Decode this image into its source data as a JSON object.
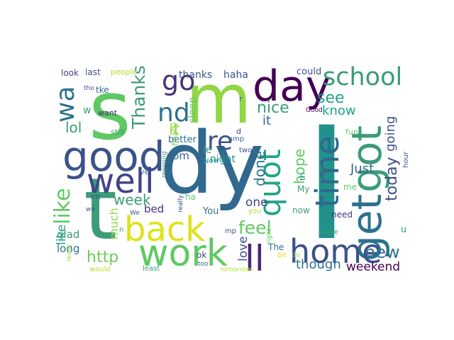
{
  "words": [
    {
      "t": "I",
      "c": "#21918c"
    },
    {
      "t": "dy",
      "c": "#31688e"
    },
    {
      "t": "s",
      "c": "#5ec962"
    },
    {
      "t": "t",
      "c": "#3b9c78"
    },
    {
      "t": "m",
      "c": "#8fd744"
    },
    {
      "t": "day",
      "c": "#440154"
    },
    {
      "t": "good",
      "c": "#3b528b"
    },
    {
      "t": "work",
      "c": "#5ec962"
    },
    {
      "t": "got",
      "c": "#3b9c78"
    },
    {
      "t": "get",
      "c": "#2c728e"
    },
    {
      "t": "back",
      "c": "#dde318"
    },
    {
      "t": "well",
      "c": "#414487"
    },
    {
      "t": "home",
      "c": "#3b528b"
    },
    {
      "t": "ll",
      "c": "#482878"
    },
    {
      "t": "time",
      "c": "#31688e"
    },
    {
      "t": "quot",
      "c": "#20a486"
    },
    {
      "t": "school",
      "c": "#3b9c78"
    },
    {
      "t": "go",
      "c": "#46327e"
    },
    {
      "t": "nd",
      "c": "#2c728e"
    },
    {
      "t": "re",
      "c": "#3b528b"
    },
    {
      "t": "like",
      "c": "#5ec962"
    },
    {
      "t": "wa",
      "c": "#2c728e"
    },
    {
      "t": "Thanks",
      "c": "#3b9c78"
    },
    {
      "t": "It",
      "c": "#b5de2b"
    },
    {
      "t": "feel",
      "c": "#5ec962"
    },
    {
      "t": "new",
      "c": "#2c728e"
    },
    {
      "t": "today",
      "c": "#3b528b"
    },
    {
      "t": "http",
      "c": "#6ece58"
    },
    {
      "t": "week",
      "c": "#3b9c78"
    },
    {
      "t": "see",
      "c": "#20a486"
    },
    {
      "t": "nice",
      "c": "#3b9c78"
    },
    {
      "t": "know",
      "c": "#20a486"
    },
    {
      "t": "going",
      "c": "#3b528b"
    },
    {
      "t": "done",
      "c": "#2c728e"
    },
    {
      "t": "hope",
      "c": "#5ec962"
    },
    {
      "t": "lol",
      "c": "#3b9c78"
    },
    {
      "t": "Just",
      "c": "#31688e"
    },
    {
      "t": "love",
      "c": "#3b528b"
    },
    {
      "t": "though",
      "c": "#2c728e"
    },
    {
      "t": "weekend",
      "c": "#440154"
    },
    {
      "t": "much",
      "c": "#8fd744"
    },
    {
      "t": "like",
      "c": "#20a486"
    },
    {
      "t": "glad",
      "c": "#3b9c78"
    },
    {
      "t": "long",
      "c": "#2c728e"
    },
    {
      "t": "it",
      "c": "#31688e"
    },
    {
      "t": "one",
      "c": "#414487"
    },
    {
      "t": "bed",
      "c": "#46327e"
    },
    {
      "t": "com",
      "c": "#31688e"
    },
    {
      "t": "ie",
      "c": "#3b9c78"
    },
    {
      "t": "night",
      "c": "#21918c"
    },
    {
      "t": "better",
      "c": "#2c728e"
    },
    {
      "t": "sleep",
      "c": "#5ec962"
    },
    {
      "t": "thanks",
      "c": "#3b528b"
    },
    {
      "t": "haha",
      "c": "#3b528b"
    },
    {
      "t": "could",
      "c": "#3b528b"
    },
    {
      "t": "w",
      "c": "#3b9c78"
    },
    {
      "t": "look",
      "c": "#414487"
    },
    {
      "t": "last",
      "c": "#3b528b"
    },
    {
      "t": "people",
      "c": "#b5de2b"
    },
    {
      "t": "tke",
      "c": "#31688e"
    },
    {
      "t": "want",
      "c": "#482878"
    },
    {
      "t": "still",
      "c": "#3b9c78"
    },
    {
      "t": "im",
      "c": "#3b528b"
    },
    {
      "t": "ve",
      "c": "#31688e"
    },
    {
      "t": "You",
      "c": "#2c728e"
    },
    {
      "t": "ha",
      "c": "#5ec962"
    },
    {
      "t": "ok",
      "c": "#3b528b"
    },
    {
      "t": "The",
      "c": "#31688e"
    },
    {
      "t": "need",
      "c": "#46327e"
    },
    {
      "t": "now",
      "c": "#3b9c78"
    },
    {
      "t": "me",
      "c": "#5ec962"
    },
    {
      "t": "My",
      "c": "#3b9c78"
    },
    {
      "t": "u",
      "c": "#20a486"
    },
    {
      "t": "fun",
      "c": "#5ec962"
    },
    {
      "t": "hour",
      "c": "#3b528b"
    },
    {
      "t": "Good",
      "c": "#440154"
    },
    {
      "t": "th",
      "c": "#21918c"
    },
    {
      "t": "finally",
      "c": "#6ece58"
    },
    {
      "t": "r",
      "c": "#3b528b"
    },
    {
      "t": "d",
      "c": "#414487"
    },
    {
      "t": "amp",
      "c": "#31688e"
    },
    {
      "t": "two",
      "c": "#3b528b"
    },
    {
      "t": "morning",
      "c": "#3b9c78"
    },
    {
      "t": "Now",
      "c": "#21918c"
    },
    {
      "t": "really",
      "c": "#3b528b"
    },
    {
      "t": "mp",
      "c": "#3b528b"
    },
    {
      "t": "you",
      "c": "#b5de2b"
    },
    {
      "t": "right",
      "c": "#5ec962"
    },
    {
      "t": "bit",
      "c": "#dde318"
    },
    {
      "t": "thi",
      "c": "#8fd744"
    },
    {
      "t": "come",
      "c": "#3b9c78"
    },
    {
      "t": "would",
      "c": "#b5de2b"
    },
    {
      "t": "least",
      "c": "#3b9c78"
    },
    {
      "t": "too",
      "c": "#31688e"
    },
    {
      "t": "tomorrow",
      "c": "#b5de2b"
    },
    {
      "t": "n",
      "c": "#3b9c78"
    },
    {
      "t": "We",
      "c": "#3b528b"
    },
    {
      "t": "really",
      "c": "#8fd744"
    },
    {
      "t": "we",
      "c": "#3b528b"
    },
    {
      "t": "tho",
      "c": "#3b528b"
    }
  ]
}
